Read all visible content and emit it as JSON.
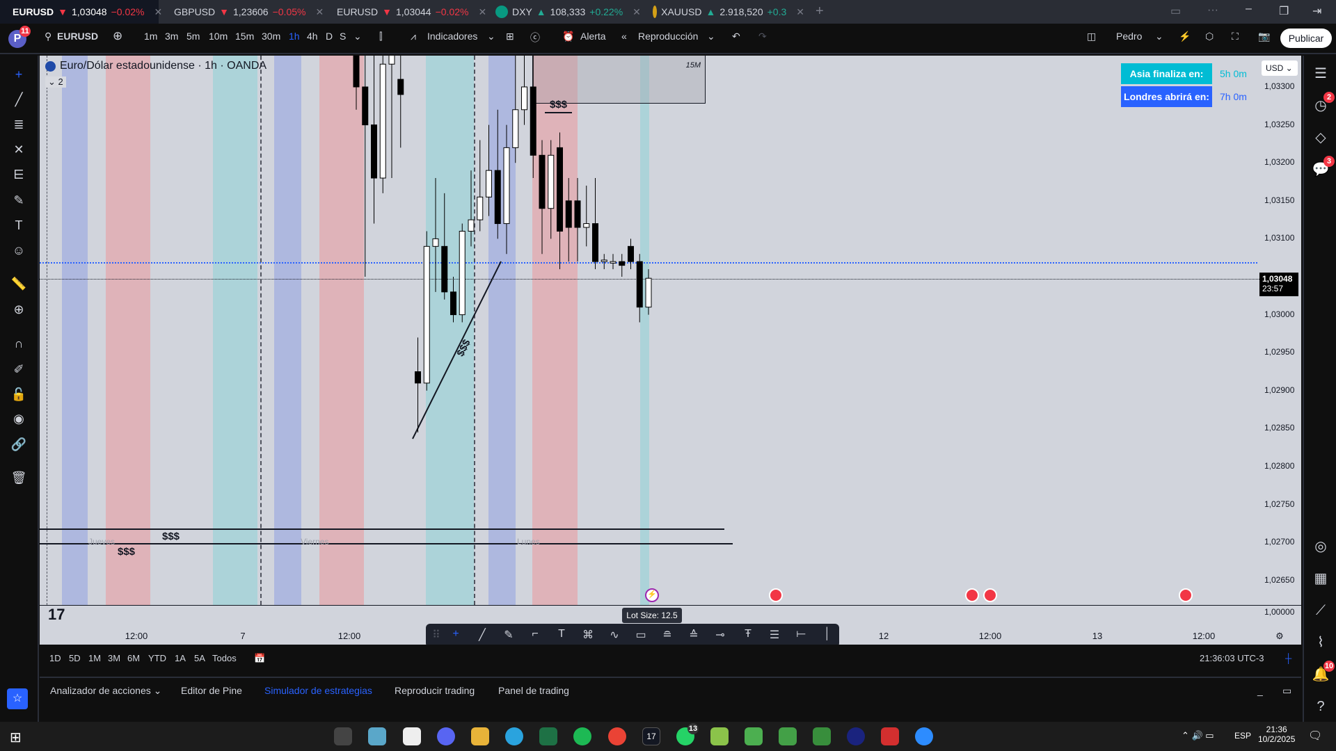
{
  "tabs": [
    {
      "symbol": "EURUSD",
      "dir": "▼",
      "price": "1,03048",
      "change": "−0.02%",
      "active": true
    },
    {
      "symbol": "GBPUSD",
      "dir": "▼",
      "price": "1,23606",
      "change": "−0.05%"
    },
    {
      "symbol": "EURUSD",
      "dir": "▼",
      "price": "1,03044",
      "change": "−0.02%"
    },
    {
      "symbol": "DXY",
      "dir": "▲",
      "price": "108,333",
      "change": "+0.22%"
    },
    {
      "symbol": "XAUUSD",
      "dir": "▲",
      "price": "2.918,520",
      "change": "+0.3"
    }
  ],
  "toolbar": {
    "avatar": "P",
    "avatar_badge": "11",
    "symbol": "EURUSD",
    "intervals": [
      "1m",
      "3m",
      "5m",
      "10m",
      "15m",
      "30m",
      "1h",
      "4h",
      "D",
      "S"
    ],
    "active_interval": "1h",
    "indicators": "Indicadores",
    "alert": "Alerta",
    "replay": "Reproducción",
    "layout_name": "Pedro",
    "publish": "Publicar"
  },
  "chart": {
    "title": "Euro/Dólar estadounidense · 1h · OANDA",
    "collapse_count": "2",
    "currency": "USD",
    "asia_label": "Asia finaliza en:",
    "asia_value": "5h 0m",
    "london_label": "Londres abrirá en:",
    "london_value": "7h 0m",
    "current_price": "1,03048",
    "countdown": "23:57",
    "box_label": "15M",
    "liquidity_marks": [
      "$$$",
      "$$$",
      "$$$",
      "$$$"
    ],
    "day_labels": [
      "Jueves",
      "Viernes",
      "Lunes"
    ],
    "lot_size": "Lot Size: 12.5",
    "lower_pane_value": "1,00000",
    "colors": {
      "asia": "#acd3d9",
      "london": "#aeb8df",
      "newyork": "#dfb3b9",
      "up": "#ffffff",
      "down": "#000000"
    }
  },
  "chart_data": {
    "type": "candlestick",
    "price_ticks": [
      "1,03300",
      "1,03250",
      "1,03200",
      "1,03150",
      "1,03100",
      "1,03000",
      "1,02950",
      "1,02900",
      "1,02850",
      "1,02800",
      "1,02750",
      "1,02700",
      "1,02650"
    ],
    "time_ticks": [
      "12:00",
      "7",
      "12:00",
      "12",
      "12:00",
      "13",
      "12:00"
    ],
    "ylim": [
      1.0263,
      1.0336
    ],
    "candles": [
      [
        1.0338,
        1.0345,
        1.0327,
        1.033
      ],
      [
        1.033,
        1.034,
        1.0305,
        1.0325
      ],
      [
        1.0325,
        1.034,
        1.0312,
        1.0318
      ],
      [
        1.0318,
        1.034,
        1.0316,
        1.0333
      ],
      [
        1.0333,
        1.034,
        1.0318,
        1.0336
      ],
      [
        1.0331,
        1.0338,
        1.0322,
        1.0329
      ],
      [
        1.02925,
        1.0297,
        1.02845,
        1.0291
      ],
      [
        1.0291,
        1.0311,
        1.029,
        1.0309
      ],
      [
        1.0309,
        1.0318,
        1.0303,
        1.031
      ],
      [
        1.0309,
        1.0316,
        1.0302,
        1.0303
      ],
      [
        1.0303,
        1.0305,
        1.0299,
        1.03
      ],
      [
        1.03,
        1.0312,
        1.0299,
        1.0311
      ],
      [
        1.0311,
        1.0319,
        1.0309,
        1.03125
      ],
      [
        1.03125,
        1.0323,
        1.0311,
        1.03155
      ],
      [
        1.03155,
        1.0325,
        1.0313,
        1.0319
      ],
      [
        1.0319,
        1.0327,
        1.031,
        1.0312
      ],
      [
        1.0312,
        1.0325,
        1.0308,
        1.0322
      ],
      [
        1.0322,
        1.0335,
        1.032,
        1.0327
      ],
      [
        1.0327,
        1.0338,
        1.0325,
        1.033
      ],
      [
        1.033,
        1.0337,
        1.0318,
        1.0321
      ],
      [
        1.0321,
        1.0323,
        1.0308,
        1.0314
      ],
      [
        1.0314,
        1.0323,
        1.031,
        1.0321
      ],
      [
        1.0322,
        1.0324,
        1.0306,
        1.0311
      ],
      [
        1.0315,
        1.0318,
        1.0307,
        1.03115
      ],
      [
        1.0315,
        1.0318,
        1.0307,
        1.03115
      ],
      [
        1.03115,
        1.0317,
        1.0309,
        1.0312
      ],
      [
        1.0312,
        1.0318,
        1.0306,
        1.0307
      ],
      [
        1.0307,
        1.0308,
        1.0306,
        1.03072
      ],
      [
        1.03068,
        1.0308,
        1.0306,
        1.0307
      ],
      [
        1.0307,
        1.0308,
        1.0305,
        1.03065
      ],
      [
        1.0309,
        1.031,
        1.0306,
        1.0307
      ],
      [
        1.0307,
        1.0308,
        1.0299,
        1.0301
      ],
      [
        1.0301,
        1.0306,
        1.03,
        1.03048
      ]
    ]
  },
  "range_bar": {
    "ranges": [
      "1D",
      "5D",
      "1M",
      "3M",
      "6M",
      "YTD",
      "1A",
      "5A",
      "Todos"
    ],
    "clock": "21:36:03 UTC-3"
  },
  "bottom_tabs": [
    "Analizador de acciones",
    "Editor de Pine",
    "Simulador de estrategias",
    "Reproducir trading",
    "Panel de trading"
  ],
  "bottom_active": "Simulador de estrategias",
  "right_badges": {
    "alerts": "2",
    "chat": "3",
    "notifications": "10"
  },
  "taskbar": {
    "lang": "ESP",
    "time": "21:36",
    "date": "10/2/2025",
    "whatsapp_badge": "13"
  }
}
